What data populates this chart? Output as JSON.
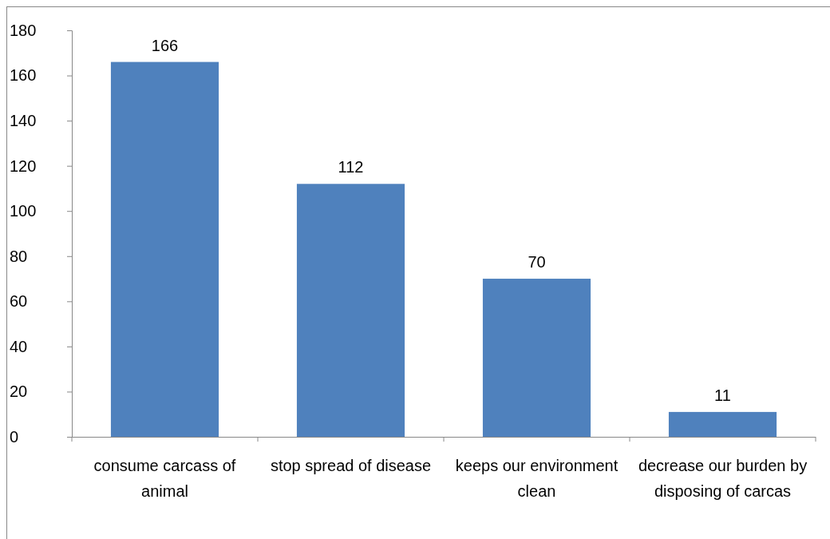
{
  "chart_data": {
    "type": "bar",
    "categories": [
      "consume carcass of animal",
      "stop spread of disease",
      "keeps our environment clean",
      "decrease our burden by disposing of carcas"
    ],
    "values": [
      166,
      112,
      70,
      11
    ],
    "color": "#4f81bd",
    "ylim": [
      0,
      180
    ],
    "yticks": [
      0,
      20,
      40,
      60,
      80,
      100,
      120,
      140,
      160,
      180
    ],
    "data_labels": true
  }
}
